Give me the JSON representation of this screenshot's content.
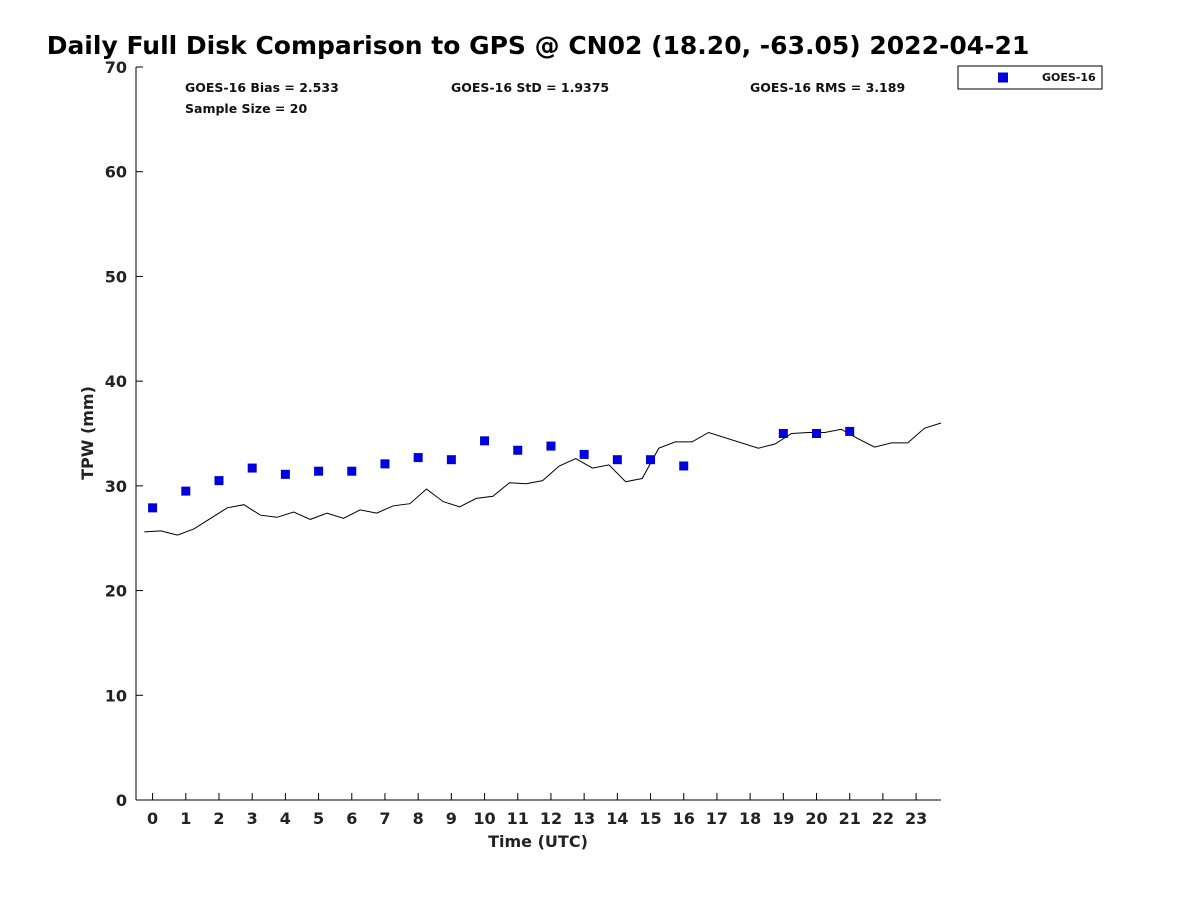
{
  "chart_data": {
    "type": "scatter",
    "title": "Daily Full Disk Comparison to GPS @ CN02 (18.20, -63.05) 2022-04-21",
    "xlabel": "Time (UTC)",
    "ylabel": "TPW (mm)",
    "xlim": [
      -0.5,
      23.75
    ],
    "ylim": [
      0,
      70
    ],
    "x_ticks": [
      "0",
      "1",
      "2",
      "3",
      "4",
      "5",
      "6",
      "7",
      "8",
      "9",
      "10",
      "11",
      "12",
      "13",
      "14",
      "15",
      "16",
      "17",
      "18",
      "19",
      "20",
      "21",
      "22",
      "23"
    ],
    "y_ticks": [
      "0",
      "10",
      "20",
      "30",
      "40",
      "50",
      "60",
      "70"
    ],
    "grid": false,
    "legend_position": "top-right (outside plot)",
    "stats": {
      "bias": "GOES-16 Bias = 2.533",
      "std": "GOES-16 StD = 1.9375",
      "rms": "GOES-16 RMS = 3.189",
      "sample": "Sample Size = 20"
    },
    "series": [
      {
        "name": "GOES-16",
        "kind": "marker",
        "color": "#0000dd",
        "x": [
          0,
          1,
          2,
          3,
          4,
          5,
          6,
          7,
          8,
          9,
          10,
          11,
          12,
          13,
          14,
          15,
          16,
          19,
          20,
          21
        ],
        "y": [
          27.9,
          29.5,
          30.5,
          31.7,
          31.1,
          31.4,
          31.4,
          32.1,
          32.7,
          32.5,
          34.3,
          33.4,
          33.8,
          33.0,
          32.5,
          32.5,
          31.9,
          35.0,
          35.0,
          35.2
        ]
      },
      {
        "kind": "line",
        "color": "#000000",
        "x": [
          -0.25,
          0.25,
          0.75,
          1.25,
          1.75,
          2.25,
          2.75,
          3.25,
          3.75,
          4.25,
          4.75,
          5.25,
          5.75,
          6.25,
          6.75,
          7.25,
          7.75,
          8.25,
          8.75,
          9.25,
          9.75,
          10.25,
          10.75,
          11.25,
          11.75,
          12.25,
          12.75,
          13.25,
          13.75,
          14.25,
          14.75,
          15.25,
          15.75,
          16.25,
          16.75,
          18.25,
          18.75,
          19.25,
          19.75,
          20.25,
          20.75,
          21.25,
          21.75,
          22.25,
          22.75,
          23.25,
          23.75
        ],
        "y": [
          25.6,
          25.7,
          25.3,
          25.9,
          26.9,
          27.9,
          28.2,
          27.2,
          27.0,
          27.5,
          26.8,
          27.4,
          26.9,
          27.7,
          27.4,
          28.1,
          28.3,
          29.7,
          28.5,
          28.0,
          28.8,
          29.0,
          30.3,
          30.2,
          30.5,
          31.9,
          32.6,
          31.7,
          32.0,
          30.4,
          30.7,
          33.6,
          34.2,
          34.2,
          35.1,
          33.6,
          34.0,
          35.0,
          35.1,
          35.1,
          35.4,
          34.5,
          33.7,
          34.1,
          34.1,
          35.5,
          36.0
        ]
      }
    ]
  }
}
